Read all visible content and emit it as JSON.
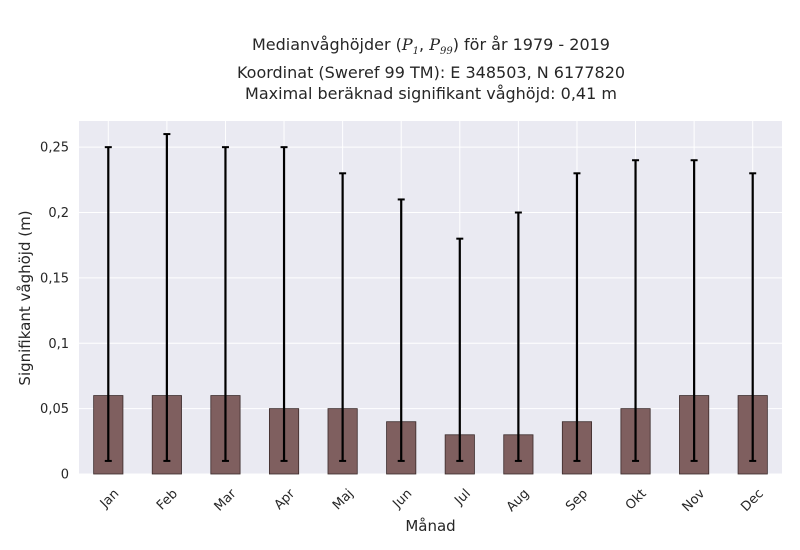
{
  "title": {
    "line1_prefix": "Medianvåghöjder (",
    "p_low_var": "P",
    "p_low_sub": "1",
    "p_high_var": "P",
    "p_high_sub": "99",
    "line1_suffix": ") för år 1979 - 2019",
    "line2": "Koordinat (Sweref 99 TM): E 348503, N 6177820",
    "line3": "Maximal beräknad signifikant våghöjd: 0,41 m"
  },
  "chart_data": {
    "type": "bar",
    "xlabel": "Månad",
    "ylabel": "Signifikant våghöjd (m)",
    "ylim": [
      0,
      0.27
    ],
    "yticks": [
      {
        "value": 0,
        "label": "0"
      },
      {
        "value": 0.05,
        "label": "0,05"
      },
      {
        "value": 0.1,
        "label": "0,1"
      },
      {
        "value": 0.15,
        "label": "0,15"
      },
      {
        "value": 0.2,
        "label": "0,2"
      },
      {
        "value": 0.25,
        "label": "0,25"
      }
    ],
    "categories": [
      "Jan",
      "Feb",
      "Mar",
      "Apr",
      "Maj",
      "Jun",
      "Jul",
      "Aug",
      "Sep",
      "Okt",
      "Nov",
      "Dec"
    ],
    "series": [
      {
        "values": [
          0.06,
          0.06,
          0.06,
          0.05,
          0.05,
          0.04,
          0.03,
          0.03,
          0.04,
          0.05,
          0.06,
          0.06
        ]
      }
    ],
    "error_low": [
      0.01,
      0.01,
      0.01,
      0.01,
      0.01,
      0.01,
      0.01,
      0.01,
      0.01,
      0.01,
      0.01,
      0.01
    ],
    "error_high": [
      0.25,
      0.26,
      0.25,
      0.25,
      0.23,
      0.21,
      0.18,
      0.2,
      0.23,
      0.24,
      0.24,
      0.23
    ],
    "grid": true,
    "colors": {
      "bar": "#7f5f5f",
      "bar_edge": "#3a2a2a",
      "error": "#000000",
      "plot_bg": "#eaeaf2",
      "grid": "#ffffff"
    }
  }
}
